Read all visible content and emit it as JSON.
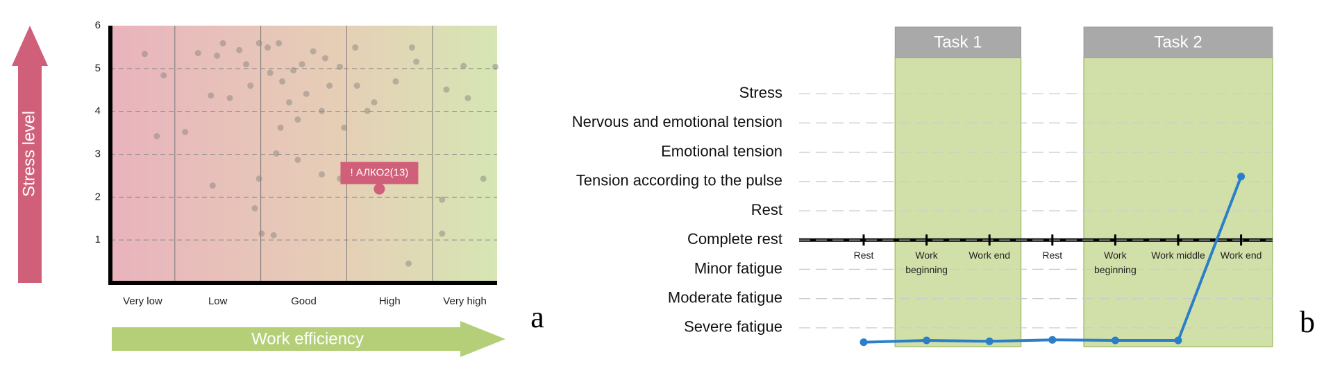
{
  "chart_data": [
    {
      "type": "scatter",
      "y_arrow_label": "Stress level",
      "x_arrow_label": "Work efficiency",
      "categories": [
        "Very low",
        "Low",
        "Good",
        "High",
        "Very high"
      ],
      "xlim": [
        0.25,
        4.75
      ],
      "xticks": [
        1,
        2,
        3,
        4
      ],
      "ylim": [
        0,
        6
      ],
      "yticks": [
        1,
        2,
        3,
        4,
        5,
        6
      ],
      "grid": true,
      "color": "#8a8580",
      "x": [
        0.65,
        0.87,
        0.79,
        1.12,
        1.27,
        1.42,
        1.49,
        1.56,
        1.64,
        1.75,
        1.83,
        1.88,
        1.98,
        2.08,
        2.11,
        2.21,
        2.25,
        2.33,
        2.38,
        2.43,
        2.48,
        2.53,
        2.61,
        2.71,
        2.75,
        2.8,
        2.92,
        2.97,
        3.1,
        3.12,
        3.24,
        3.32,
        3.57,
        3.76,
        3.81,
        4.16,
        4.36,
        4.41,
        4.73,
        2.18,
        2.23,
        2.43,
        1.93,
        2.01,
        2.15,
        1.44,
        2.71,
        2.92,
        3.72,
        4.11,
        4.11,
        4.59,
        1.98
      ],
      "values": [
        5.34,
        4.84,
        3.42,
        3.52,
        5.36,
        4.37,
        5.3,
        5.59,
        4.31,
        5.43,
        5.1,
        4.6,
        5.59,
        5.49,
        4.9,
        5.59,
        4.7,
        4.21,
        4.96,
        3.81,
        5.1,
        4.41,
        5.4,
        4.01,
        5.24,
        4.6,
        5.04,
        3.62,
        5.49,
        4.6,
        4.01,
        4.21,
        4.7,
        5.49,
        5.16,
        4.51,
        5.06,
        4.31,
        5.04,
        3.02,
        3.62,
        2.87,
        1.74,
        1.15,
        1.11,
        2.27,
        2.53,
        2.43,
        0.45,
        1.94,
        1.15,
        2.43,
        2.43
      ],
      "highlight": {
        "label": "! АЛКО2(13)",
        "x": 3.38,
        "y": 2.19,
        "color": "#d0607a"
      },
      "panel": "a"
    },
    {
      "type": "line",
      "levels": [
        "Stress",
        "Nervous and emotional tension",
        "Emotional tension",
        "Tension according to the pulse",
        "Rest",
        "Complete rest",
        "Minor fatigue",
        "Moderate fatigue",
        "Severe fatigue"
      ],
      "ylim": [
        0.5,
        9.5
      ],
      "baseline_level": "Complete rest",
      "categories": [
        "Rest",
        "Work beginning",
        "Work end",
        "Rest",
        "Work beginning",
        "Work middle",
        "Work end"
      ],
      "values": [
        0.51,
        0.57,
        0.54,
        0.59,
        0.57,
        0.57,
        6.17
      ],
      "color": "#2a7fc8",
      "tasks": [
        {
          "label": "Task 1",
          "first": 1,
          "last": 2
        },
        {
          "label": "Task 2",
          "first": 4,
          "last": 6
        }
      ],
      "panel": "b"
    }
  ]
}
